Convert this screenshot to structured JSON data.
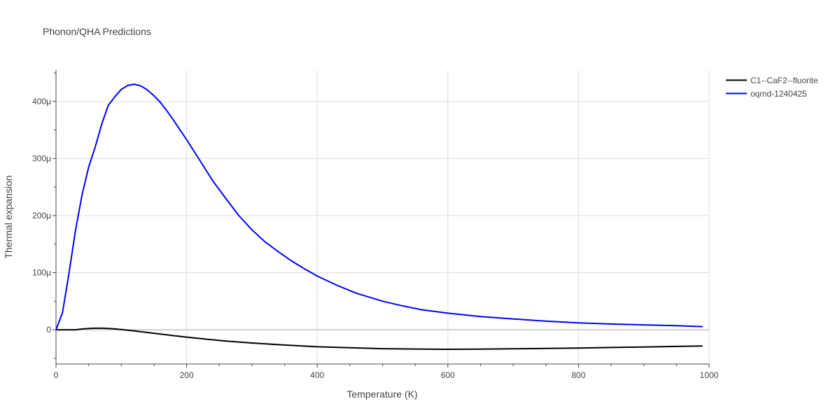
{
  "chart_data": {
    "type": "line",
    "title": "Phonon/QHA Predictions",
    "xlabel": "Temperature (K)",
    "ylabel": "Thermal expansion",
    "xlim": [
      0,
      1000
    ],
    "ylim": [
      -6e-05,
      0.000455
    ],
    "grid": true,
    "legend_position": "top-right",
    "x_ticks": [
      {
        "value": 0,
        "label": "0"
      },
      {
        "value": 200,
        "label": "200"
      },
      {
        "value": 400,
        "label": "400"
      },
      {
        "value": 600,
        "label": "600"
      },
      {
        "value": 800,
        "label": "800"
      },
      {
        "value": 1000,
        "label": "1000"
      }
    ],
    "y_ticks": [
      {
        "value": 0,
        "label": "0"
      },
      {
        "value": 0.0001,
        "label": "100μ"
      },
      {
        "value": 0.0002,
        "label": "200μ"
      },
      {
        "value": 0.0003,
        "label": "300μ"
      },
      {
        "value": 0.0004,
        "label": "400μ"
      }
    ],
    "series": [
      {
        "name": "C1--CaF2--fluorite",
        "color": "#000000",
        "x": [
          0,
          10,
          20,
          30,
          40,
          50,
          60,
          70,
          80,
          90,
          100,
          120,
          140,
          160,
          180,
          200,
          230,
          260,
          300,
          350,
          400,
          450,
          500,
          550,
          600,
          650,
          700,
          750,
          800,
          850,
          900,
          950,
          990
        ],
        "y": [
          0,
          0,
          0,
          0,
          1.3e-06,
          2.2e-06,
          2.7e-06,
          2.7e-06,
          2.2e-06,
          1.4e-06,
          5e-07,
          -2e-06,
          -4.8e-06,
          -7.6e-06,
          -1.03e-05,
          -1.29e-05,
          -1.65e-05,
          -1.98e-05,
          -2.32e-05,
          -2.68e-05,
          -2.98e-05,
          -3.16e-05,
          -3.32e-05,
          -3.38e-05,
          -3.43e-05,
          -3.4e-05,
          -3.34e-05,
          -3.28e-05,
          -3.2e-05,
          -3.11e-05,
          -3.02e-05,
          -2.92e-05,
          -2.85e-05
        ]
      },
      {
        "name": "oqmd-1240425",
        "color": "#0000ff",
        "x": [
          0,
          10,
          20,
          30,
          40,
          50,
          60,
          70,
          80,
          90,
          100,
          110,
          120,
          130,
          140,
          150,
          160,
          170,
          180,
          200,
          220,
          240,
          260,
          280,
          300,
          320,
          340,
          360,
          380,
          400,
          430,
          460,
          500,
          530,
          560,
          600,
          650,
          700,
          750,
          800,
          850,
          900,
          950,
          990
        ],
        "y": [
          0,
          3e-05,
          0.0001,
          0.000175,
          0.000237,
          0.000285,
          0.00032,
          0.00036,
          0.000393,
          0.000408,
          0.000421,
          0.000428,
          0.00043,
          0.000427,
          0.00042,
          0.00041,
          0.000398,
          0.000383,
          0.000367,
          0.000333,
          0.000297,
          0.000261,
          0.00023,
          0.0002,
          0.000175,
          0.000154,
          0.000137,
          0.000121,
          0.000107,
          9.4e-05,
          7.8e-05,
          6.4e-05,
          5e-05,
          4.2e-05,
          3.5e-05,
          2.9e-05,
          2.3e-05,
          1.9e-05,
          1.5e-05,
          1.2e-05,
          1e-05,
          8.5e-06,
          7.2e-06,
          5.5e-06
        ]
      }
    ]
  }
}
